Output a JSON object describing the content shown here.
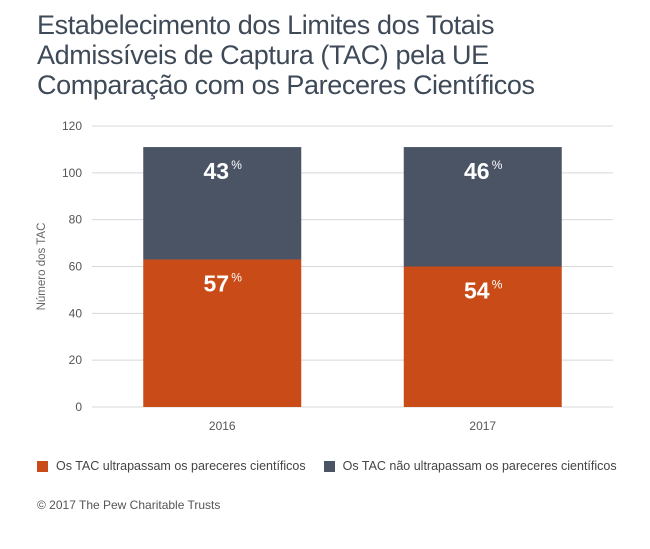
{
  "title_lines": [
    "Estabelecimento dos Limites dos Totais",
    "Admissíveis de Captura (TAC) pela UE",
    "Comparação com os Pareceres Científicos"
  ],
  "colors": {
    "exceed": "#c94b17",
    "not_exceed": "#4a5464",
    "grid": "#d8d8d8"
  },
  "chart_data": {
    "type": "bar",
    "stacked": true,
    "categories": [
      "2016",
      "2017"
    ],
    "series": [
      {
        "name": "Os TAC ultrapassam os pareceres científicos",
        "values": [
          63,
          60
        ],
        "labels": [
          "57",
          "54"
        ]
      },
      {
        "name": "Os TAC não ultrapassam os pareceres científicos",
        "values": [
          48,
          51
        ],
        "labels": [
          "43",
          "46"
        ]
      }
    ],
    "percent_sign": "%",
    "ylabel": "Número dos TAC",
    "ylim": [
      0,
      120
    ],
    "yticks": [
      0,
      20,
      40,
      60,
      80,
      100,
      120
    ],
    "grid": true,
    "legend": "bottom-left"
  },
  "source": "© 2017 The Pew Charitable Trusts"
}
